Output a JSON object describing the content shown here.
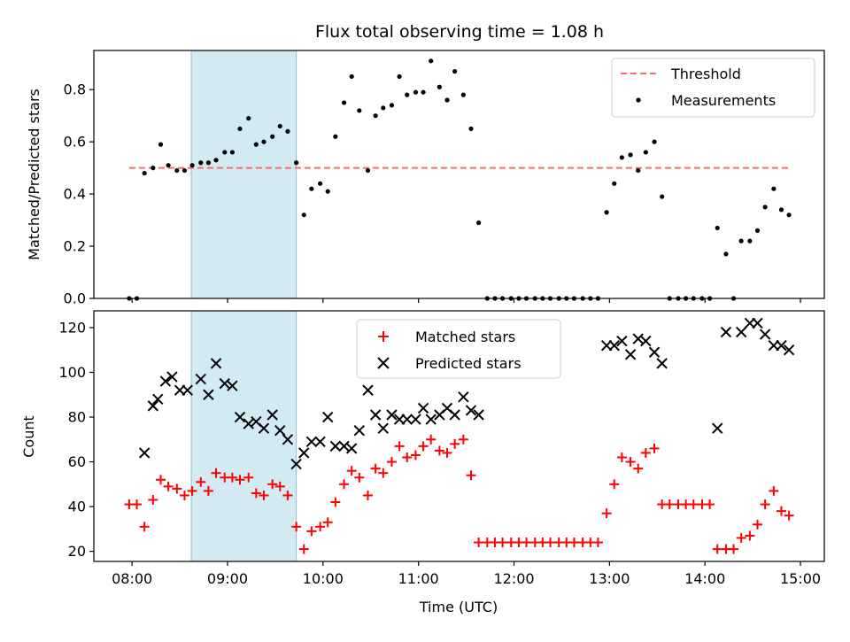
{
  "figure": {
    "title": "Flux total observing time = 1.08 h",
    "xlabel": "Time (UTC)",
    "xticks": [
      "08:00",
      "09:00",
      "10:00",
      "11:00",
      "12:00",
      "13:00",
      "14:00",
      "15:00"
    ]
  },
  "chart_data": [
    {
      "type": "scatter",
      "panel": "top",
      "title": "Flux total observing time = 1.08 h",
      "xlabel": "",
      "ylabel": "Matched/Predicted stars",
      "x_unit": "hours UTC",
      "xlim": [
        7.6,
        15.25
      ],
      "ylim": [
        0.0,
        0.95
      ],
      "yticks": [
        0.0,
        0.2,
        0.4,
        0.6,
        0.8
      ],
      "ytick_labels": [
        "0.0",
        "0.2",
        "0.4",
        "0.6",
        "0.8"
      ],
      "grid": false,
      "legend_placement": "top-right",
      "highlight_span": {
        "x_start": 8.62,
        "x_end": 9.72,
        "color": "#add8e6"
      },
      "threshold": {
        "name": "Threshold",
        "y": 0.5,
        "x_start": 7.97,
        "x_end": 14.9,
        "color": "#ff6b6b"
      },
      "series": [
        {
          "name": "Measurements",
          "color": "#000000",
          "marker": "dot",
          "x": [
            7.97,
            8.05,
            8.13,
            8.22,
            8.3,
            8.38,
            8.47,
            8.55,
            8.63,
            8.72,
            8.8,
            8.88,
            8.97,
            9.05,
            9.13,
            9.22,
            9.3,
            9.38,
            9.47,
            9.55,
            9.63,
            9.72,
            9.8,
            9.88,
            9.97,
            10.05,
            10.13,
            10.22,
            10.3,
            10.38,
            10.47,
            10.55,
            10.63,
            10.72,
            10.8,
            10.88,
            10.97,
            11.05,
            11.13,
            11.22,
            11.3,
            11.38,
            11.47,
            11.55,
            11.63,
            11.72,
            11.8,
            11.88,
            11.97,
            12.05,
            12.13,
            12.22,
            12.3,
            12.38,
            12.47,
            12.55,
            12.63,
            12.72,
            12.8,
            12.88,
            12.97,
            13.05,
            13.13,
            13.22,
            13.3,
            13.38,
            13.47,
            13.55,
            13.63,
            13.72,
            13.8,
            13.88,
            13.97,
            14.05,
            14.13,
            14.22,
            14.3,
            14.38,
            14.47,
            14.55,
            14.63,
            14.72,
            14.8,
            14.88
          ],
          "y": [
            0.0,
            0.0,
            0.48,
            0.5,
            0.59,
            0.51,
            0.49,
            0.49,
            0.51,
            0.52,
            0.52,
            0.53,
            0.56,
            0.56,
            0.65,
            0.69,
            0.59,
            0.6,
            0.62,
            0.66,
            0.64,
            0.52,
            0.32,
            0.42,
            0.44,
            0.41,
            0.62,
            0.75,
            0.85,
            0.72,
            0.49,
            0.7,
            0.73,
            0.74,
            0.85,
            0.78,
            0.79,
            0.79,
            0.91,
            0.81,
            0.76,
            0.87,
            0.78,
            0.65,
            0.29,
            0.0,
            0.0,
            0.0,
            0.0,
            0.0,
            0.0,
            0.0,
            0.0,
            0.0,
            0.0,
            0.0,
            0.0,
            0.0,
            0.0,
            0.0,
            0.33,
            0.44,
            0.54,
            0.55,
            0.49,
            0.56,
            0.6,
            0.39,
            0.0,
            0.0,
            0.0,
            0.0,
            0.0,
            0.0,
            0.27,
            0.17,
            0.0,
            0.22,
            0.22,
            0.26,
            0.35,
            0.42,
            0.34,
            0.32
          ]
        }
      ]
    },
    {
      "type": "scatter",
      "panel": "bottom",
      "xlabel": "Time (UTC)",
      "ylabel": "Count",
      "x_unit": "hours UTC",
      "xlim": [
        7.6,
        15.25
      ],
      "ylim": [
        15.5,
        127.5
      ],
      "yticks": [
        20,
        40,
        60,
        80,
        100,
        120
      ],
      "ytick_labels": [
        "20",
        "40",
        "60",
        "80",
        "100",
        "120"
      ],
      "grid": false,
      "legend_placement": "top-center",
      "highlight_span": {
        "x_start": 8.62,
        "x_end": 9.72,
        "color": "#add8e6"
      },
      "series": [
        {
          "name": "Matched stars",
          "color": "#ff0000",
          "marker": "plus",
          "x": [
            7.97,
            8.05,
            8.13,
            8.22,
            8.3,
            8.38,
            8.47,
            8.55,
            8.63,
            8.72,
            8.8,
            8.88,
            8.97,
            9.05,
            9.13,
            9.22,
            9.3,
            9.38,
            9.47,
            9.55,
            9.63,
            9.72,
            9.8,
            9.88,
            9.97,
            10.05,
            10.13,
            10.22,
            10.3,
            10.38,
            10.47,
            10.55,
            10.63,
            10.72,
            10.8,
            10.88,
            10.97,
            11.05,
            11.13,
            11.22,
            11.3,
            11.38,
            11.47,
            11.55,
            11.63,
            11.72,
            11.8,
            11.88,
            11.97,
            12.05,
            12.13,
            12.22,
            12.3,
            12.38,
            12.47,
            12.55,
            12.63,
            12.72,
            12.8,
            12.88,
            12.97,
            13.05,
            13.13,
            13.22,
            13.3,
            13.38,
            13.47,
            13.55,
            13.63,
            13.72,
            13.8,
            13.88,
            13.97,
            14.05,
            14.13,
            14.22,
            14.3,
            14.38,
            14.47,
            14.55,
            14.63,
            14.72,
            14.8,
            14.88
          ],
          "y": [
            41,
            41,
            31,
            43,
            52,
            49,
            48,
            45,
            47,
            51,
            47,
            55,
            53,
            53,
            52,
            53,
            46,
            45,
            50,
            49,
            45,
            31,
            21,
            29,
            31,
            33,
            42,
            50,
            56,
            53,
            45,
            57,
            55,
            60,
            67,
            62,
            63,
            67,
            70,
            65,
            64,
            68,
            70,
            54,
            24,
            24,
            24,
            24,
            24,
            24,
            24,
            24,
            24,
            24,
            24,
            24,
            24,
            24,
            24,
            24,
            37,
            50,
            62,
            60,
            57,
            64,
            66,
            41,
            41,
            41,
            41,
            41,
            41,
            41,
            21,
            21,
            21,
            26,
            27,
            32,
            41,
            47,
            38,
            36
          ]
        },
        {
          "name": "Predicted stars",
          "color": "#000000",
          "marker": "x",
          "x": [
            8.13,
            8.22,
            8.27,
            8.35,
            8.42,
            8.5,
            8.58,
            8.72,
            8.8,
            8.88,
            8.97,
            9.05,
            9.13,
            9.22,
            9.3,
            9.38,
            9.47,
            9.55,
            9.63,
            9.72,
            9.8,
            9.88,
            9.97,
            10.05,
            10.13,
            10.22,
            10.3,
            10.38,
            10.47,
            10.55,
            10.63,
            10.72,
            10.8,
            10.88,
            10.97,
            11.05,
            11.13,
            11.22,
            11.3,
            11.38,
            11.47,
            11.55,
            11.63,
            12.97,
            13.05,
            13.13,
            13.22,
            13.3,
            13.38,
            13.47,
            13.55,
            14.13,
            14.22,
            14.38,
            14.47,
            14.55,
            14.63,
            14.72,
            14.8,
            14.88
          ],
          "y": [
            64,
            85,
            88,
            96,
            98,
            92,
            92,
            97,
            90,
            104,
            95,
            94,
            80,
            77,
            78,
            75,
            81,
            74,
            70,
            59,
            64,
            69,
            69,
            80,
            67,
            67,
            66,
            74,
            92,
            81,
            75,
            81,
            79,
            79,
            79,
            84,
            79,
            81,
            84,
            81,
            89,
            83,
            81,
            112,
            112,
            114,
            108,
            115,
            114,
            109,
            104,
            75,
            118,
            118,
            122,
            122,
            117,
            112,
            112,
            110
          ]
        }
      ]
    }
  ]
}
